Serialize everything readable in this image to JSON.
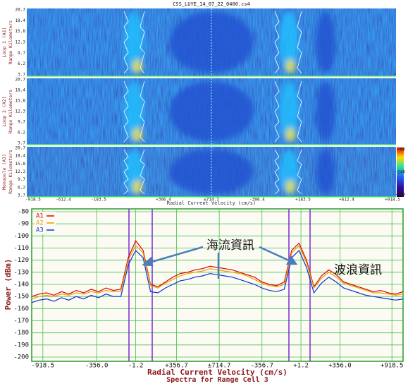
{
  "spectrogram": {
    "title": "CSS_LUYE_14_07_22_0400.cs4",
    "panels": [
      {
        "label": "Loop 1 (A1)",
        "axis_label": "Range Kilometers",
        "ticks": [
          "20.7",
          "18.4",
          "15.8",
          "12.3",
          "9.7",
          "6.2",
          "3.7"
        ]
      },
      {
        "label": "Loop 2 (A2)",
        "axis_label": "Range Kilometers",
        "ticks": [
          "20.7",
          "18.4",
          "15.8",
          "12.3",
          "9.7",
          "6.2",
          "3.7"
        ]
      },
      {
        "label": "Monopole (A3)",
        "axis_label": "Range Kilometers",
        "ticks": [
          "20.7",
          "18.4",
          "15.8",
          "12.3",
          "9.7",
          "6.2",
          "3.7"
        ]
      }
    ],
    "xticks": [
      "-918.5",
      "-612.4",
      "-183.5",
      "+306.4",
      "±714.7",
      "-306.4",
      "+183.5",
      "+612.4",
      "+918.5"
    ],
    "xlabel": "Radial Current Velocity (cm/s)",
    "colorbar": [
      "-80",
      "-140",
      "-180"
    ]
  },
  "annotations": [
    "海流資訊",
    "波浪資訊"
  ],
  "chart_data": {
    "type": "line",
    "ylabel": "Power (dBm)",
    "xlabel": "Radial Current Velocity (cm/s)",
    "subtitle": "Spectra for Range Cell 3",
    "x": [
      0,
      2,
      4,
      6,
      8,
      10,
      12,
      14,
      16,
      18,
      20,
      22,
      24,
      26,
      28,
      30,
      32,
      34,
      36,
      38,
      40,
      42,
      44,
      46,
      48,
      50,
      52,
      54,
      56,
      58,
      60,
      62,
      64,
      66,
      68,
      70,
      72,
      74,
      76,
      78,
      80,
      82,
      84,
      86,
      88,
      90,
      92,
      94,
      96,
      98,
      100
    ],
    "xlim": [
      0,
      100
    ],
    "xticks": [
      {
        "value": 3,
        "label": "-918.5"
      },
      {
        "value": 17.5,
        "label": "-356.0"
      },
      {
        "value": 28,
        "label": "-1.2"
      },
      {
        "value": 39,
        "label": "+356.7"
      },
      {
        "value": 50.5,
        "label": "±714.7"
      },
      {
        "value": 62,
        "label": "-356.7"
      },
      {
        "value": 72.5,
        "label": "+1.2"
      },
      {
        "value": 83,
        "label": "+356.0"
      },
      {
        "value": 97,
        "label": "+918.5"
      }
    ],
    "ylim": [
      -200,
      -80
    ],
    "yticks": [
      -200,
      -190,
      -180,
      -170,
      -160,
      -150,
      -140,
      -130,
      -120,
      -110,
      -100,
      -90,
      -80
    ],
    "grid": true,
    "legend": "top-left",
    "series": [
      {
        "name": "A1",
        "color": "#e00000",
        "values": [
          -150,
          -148,
          -147,
          -149,
          -146,
          -148,
          -145,
          -147,
          -144,
          -146,
          -143,
          -145,
          -144,
          -118,
          -104,
          -112,
          -140,
          -142,
          -138,
          -134,
          -131,
          -130,
          -128,
          -127,
          -125,
          -126,
          -127,
          -128,
          -130,
          -132,
          -134,
          -138,
          -140,
          -141,
          -138,
          -112,
          -106,
          -120,
          -142,
          -133,
          -128,
          -132,
          -138,
          -140,
          -142,
          -144,
          -146,
          -145,
          -147,
          -148,
          -146
        ]
      },
      {
        "name": "A2",
        "color": "#e8a000",
        "values": [
          -152,
          -150,
          -149,
          -150,
          -148,
          -149,
          -147,
          -148,
          -146,
          -147,
          -145,
          -146,
          -146,
          -120,
          -108,
          -114,
          -141,
          -143,
          -139,
          -136,
          -133,
          -131,
          -130,
          -129,
          -127,
          -128,
          -129,
          -130,
          -131,
          -133,
          -136,
          -139,
          -141,
          -142,
          -140,
          -114,
          -108,
          -122,
          -143,
          -135,
          -130,
          -134,
          -139,
          -141,
          -143,
          -145,
          -147,
          -147,
          -148,
          -149,
          -148
        ]
      },
      {
        "name": "A3",
        "color": "#1030d0",
        "values": [
          -155,
          -153,
          -152,
          -154,
          -151,
          -153,
          -150,
          -152,
          -149,
          -151,
          -148,
          -150,
          -150,
          -124,
          -112,
          -118,
          -146,
          -147,
          -143,
          -140,
          -137,
          -136,
          -134,
          -133,
          -131,
          -132,
          -133,
          -134,
          -136,
          -138,
          -140,
          -143,
          -145,
          -146,
          -144,
          -118,
          -112,
          -126,
          -147,
          -139,
          -134,
          -138,
          -143,
          -145,
          -147,
          -149,
          -150,
          -151,
          -152,
          -153,
          -152
        ]
      }
    ]
  }
}
